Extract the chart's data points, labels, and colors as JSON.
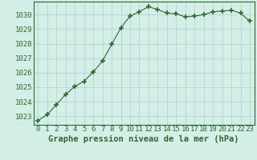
{
  "x": [
    0,
    1,
    2,
    3,
    4,
    5,
    6,
    7,
    8,
    9,
    10,
    11,
    12,
    13,
    14,
    15,
    16,
    17,
    18,
    19,
    20,
    21,
    22,
    23
  ],
  "y": [
    1022.7,
    1023.1,
    1023.8,
    1024.5,
    1025.05,
    1025.4,
    1026.05,
    1026.8,
    1027.95,
    1029.1,
    1029.9,
    1030.2,
    1030.55,
    1030.35,
    1030.1,
    1030.05,
    1029.85,
    1029.9,
    1030.0,
    1030.2,
    1030.25,
    1030.3,
    1030.1,
    1029.55
  ],
  "line_color": "#2d6a2d",
  "marker": "+",
  "marker_size": 4,
  "marker_lw": 1.2,
  "bg_color": "#d4eee8",
  "grid_color": "#b0cfc8",
  "xlabel": "Graphe pression niveau de la mer (hPa)",
  "xlabel_fontsize": 7.5,
  "xlabel_color": "#2d6a2d",
  "tick_fontsize": 6.5,
  "ylim": [
    1022.4,
    1030.9
  ],
  "yticks": [
    1023,
    1024,
    1025,
    1026,
    1027,
    1028,
    1029,
    1030
  ],
  "xlim": [
    -0.5,
    23.5
  ],
  "xticks": [
    0,
    1,
    2,
    3,
    4,
    5,
    6,
    7,
    8,
    9,
    10,
    11,
    12,
    13,
    14,
    15,
    16,
    17,
    18,
    19,
    20,
    21,
    22,
    23
  ],
  "tick_color": "#2d6a2d",
  "spine_color": "#2d6a2d",
  "line_width": 0.8
}
